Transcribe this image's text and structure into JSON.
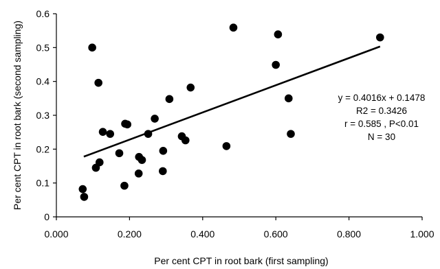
{
  "chart_data": {
    "type": "scatter",
    "xlabel": "Per cent CPT in root bark (first sampling)",
    "ylabel": "Per cent CPT in root bark (second sampling)",
    "xlim": [
      0,
      1.0
    ],
    "ylim": [
      0,
      0.6
    ],
    "x_ticks": [
      "0.000",
      "0.200",
      "0.400",
      "0.600",
      "0.800",
      "1.000"
    ],
    "y_ticks": [
      "0",
      "0.1",
      "0.2",
      "0.3",
      "0.4",
      "0.5",
      "0.6"
    ],
    "grid": false,
    "points": [
      {
        "x": 0.072,
        "y": 0.082
      },
      {
        "x": 0.076,
        "y": 0.059
      },
      {
        "x": 0.098,
        "y": 0.5
      },
      {
        "x": 0.108,
        "y": 0.145
      },
      {
        "x": 0.115,
        "y": 0.396
      },
      {
        "x": 0.118,
        "y": 0.161
      },
      {
        "x": 0.127,
        "y": 0.251
      },
      {
        "x": 0.147,
        "y": 0.245
      },
      {
        "x": 0.172,
        "y": 0.188
      },
      {
        "x": 0.186,
        "y": 0.092
      },
      {
        "x": 0.188,
        "y": 0.275
      },
      {
        "x": 0.194,
        "y": 0.273
      },
      {
        "x": 0.225,
        "y": 0.128
      },
      {
        "x": 0.226,
        "y": 0.177
      },
      {
        "x": 0.234,
        "y": 0.168
      },
      {
        "x": 0.251,
        "y": 0.245
      },
      {
        "x": 0.269,
        "y": 0.29
      },
      {
        "x": 0.291,
        "y": 0.135
      },
      {
        "x": 0.292,
        "y": 0.195
      },
      {
        "x": 0.309,
        "y": 0.348
      },
      {
        "x": 0.343,
        "y": 0.238
      },
      {
        "x": 0.353,
        "y": 0.226
      },
      {
        "x": 0.367,
        "y": 0.382
      },
      {
        "x": 0.465,
        "y": 0.209
      },
      {
        "x": 0.484,
        "y": 0.559
      },
      {
        "x": 0.6,
        "y": 0.449
      },
      {
        "x": 0.606,
        "y": 0.539
      },
      {
        "x": 0.635,
        "y": 0.35
      },
      {
        "x": 0.641,
        "y": 0.245
      },
      {
        "x": 0.885,
        "y": 0.53
      }
    ],
    "trendline": {
      "x": [
        0.075,
        0.885
      ],
      "slope": 0.4016,
      "intercept": 0.1478
    },
    "annotations": [
      "y = 0.4016x + 0.1478",
      "R2 = 0.3426",
      "r = 0.585 , P<0.01",
      "N = 30"
    ]
  }
}
